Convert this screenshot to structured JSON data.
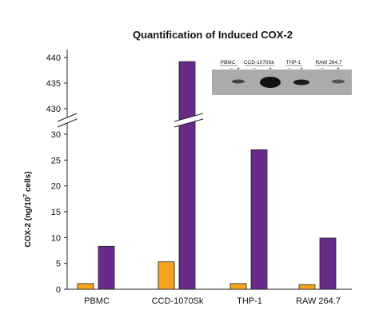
{
  "chart_data": {
    "type": "bar",
    "title": "Quantification of Induced COX-2",
    "ylabel_main": "COX-2 (ng/10",
    "ylabel_sup": "7",
    "ylabel_end": " cells)",
    "categories": [
      "PBMC",
      "CCD-1070Sk",
      "THP-1",
      "RAW 264.7"
    ],
    "series": [
      {
        "color": "#f5a21e",
        "values": [
          1.1,
          5.3,
          1.1,
          0.9
        ]
      },
      {
        "color": "#6a2a8a",
        "values": [
          8.3,
          439.2,
          27.0,
          9.9
        ]
      }
    ],
    "lower_axis": {
      "ylim": [
        0,
        30
      ],
      "ticks": [
        "0",
        "5",
        "10",
        "15",
        "20",
        "25",
        "30"
      ]
    },
    "upper_axis": {
      "ylim": [
        430,
        440
      ],
      "ticks": [
        "430",
        "435",
        "440"
      ]
    },
    "axis_break": true,
    "grid": false
  },
  "inset_blot": {
    "lanes": [
      "PBMC",
      "CCD-1070Sk",
      "THP-1",
      "RAW 264.7"
    ],
    "minus": "−",
    "plus": "+"
  }
}
